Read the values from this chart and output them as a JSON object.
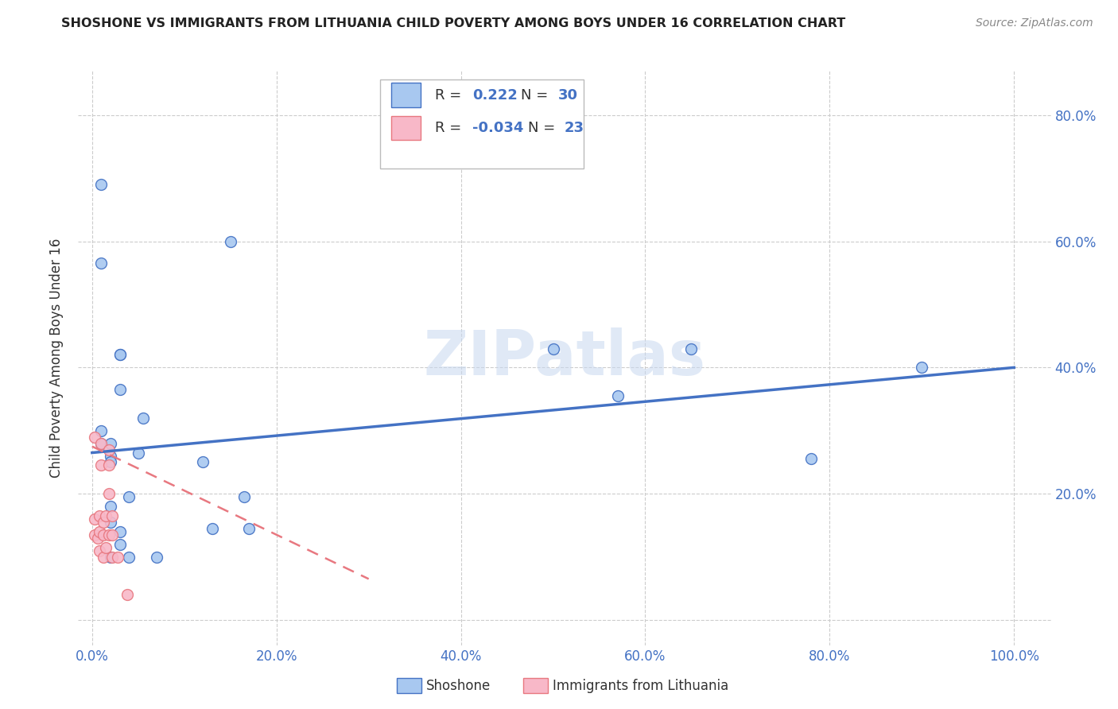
{
  "title": "SHOSHONE VS IMMIGRANTS FROM LITHUANIA CHILD POVERTY AMONG BOYS UNDER 16 CORRELATION CHART",
  "source": "Source: ZipAtlas.com",
  "xlabel_ticks": [
    "0.0%",
    "20.0%",
    "40.0%",
    "60.0%",
    "80.0%",
    "100.0%"
  ],
  "xlabel_vals": [
    0.0,
    0.2,
    0.4,
    0.6,
    0.8,
    1.0
  ],
  "ylabel": "Child Poverty Among Boys Under 16",
  "shoshone_color": "#A8C8F0",
  "lithuania_color": "#F8B8C8",
  "shoshone_edge": "#4472C4",
  "lithuania_edge": "#E87880",
  "shoshone_x": [
    0.01,
    0.01,
    0.01,
    0.01,
    0.02,
    0.02,
    0.02,
    0.02,
    0.02,
    0.02,
    0.03,
    0.03,
    0.03,
    0.03,
    0.03,
    0.04,
    0.04,
    0.05,
    0.055,
    0.07,
    0.12,
    0.13,
    0.15,
    0.165,
    0.17,
    0.5,
    0.57,
    0.65,
    0.78,
    0.9
  ],
  "shoshone_y": [
    0.69,
    0.565,
    0.3,
    0.28,
    0.28,
    0.26,
    0.25,
    0.18,
    0.155,
    0.1,
    0.42,
    0.42,
    0.365,
    0.14,
    0.12,
    0.195,
    0.1,
    0.265,
    0.32,
    0.1,
    0.25,
    0.145,
    0.6,
    0.195,
    0.145,
    0.43,
    0.355,
    0.43,
    0.255,
    0.4
  ],
  "lithuania_x": [
    0.003,
    0.003,
    0.003,
    0.006,
    0.008,
    0.008,
    0.008,
    0.01,
    0.01,
    0.012,
    0.012,
    0.012,
    0.015,
    0.015,
    0.018,
    0.018,
    0.018,
    0.018,
    0.022,
    0.022,
    0.022,
    0.028,
    0.038
  ],
  "lithuania_y": [
    0.29,
    0.16,
    0.135,
    0.13,
    0.165,
    0.14,
    0.11,
    0.28,
    0.245,
    0.155,
    0.135,
    0.1,
    0.165,
    0.115,
    0.27,
    0.245,
    0.2,
    0.135,
    0.165,
    0.135,
    0.1,
    0.1,
    0.04
  ],
  "trendline_blue_x0": 0.0,
  "trendline_blue_x1": 1.0,
  "trendline_blue_y0": 0.265,
  "trendline_blue_y1": 0.4,
  "trendline_pink_x0": 0.0,
  "trendline_pink_x1": 0.3,
  "trendline_pink_y0": 0.275,
  "trendline_pink_y1": 0.065,
  "background_color": "#FFFFFF",
  "grid_color": "#CCCCCC",
  "watermark": "ZIPatlas",
  "marker_size": 100,
  "xlim": [
    -0.015,
    1.04
  ],
  "ylim": [
    -0.04,
    0.87
  ],
  "right_ytick_vals": [
    0.2,
    0.4,
    0.6,
    0.8
  ],
  "right_ytick_labels": [
    "20.0%",
    "40.0%",
    "60.0%",
    "80.0%"
  ]
}
